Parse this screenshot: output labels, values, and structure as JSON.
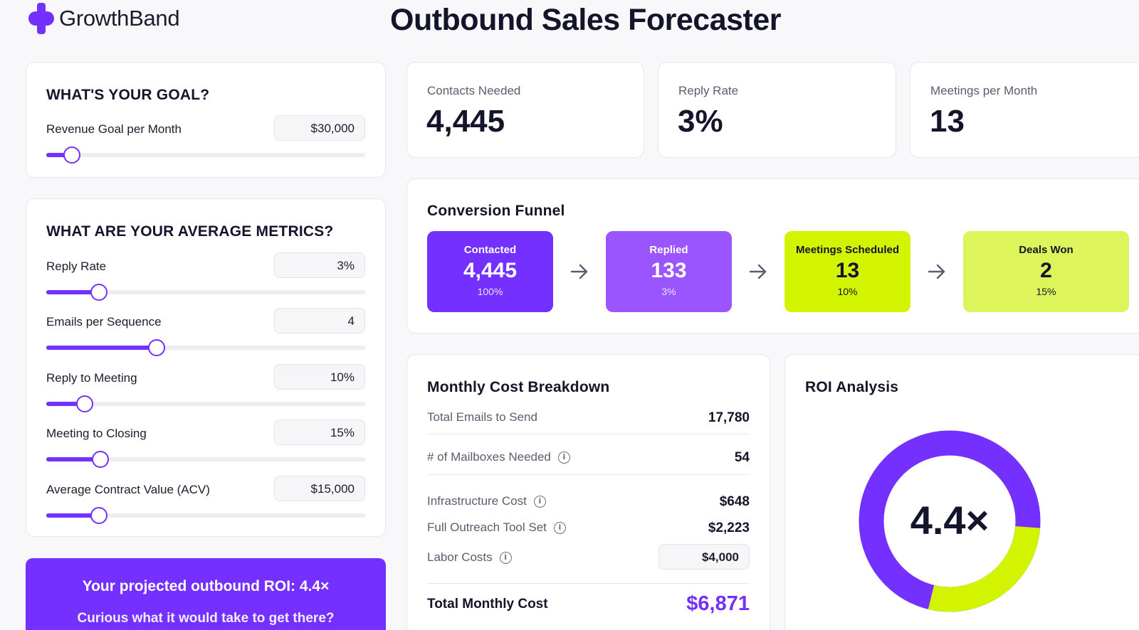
{
  "header": {
    "brand": "GrowthBand",
    "title": "Outbound Sales Forecaster"
  },
  "colors": {
    "accent": "#7330ff",
    "accent_light": "#9a55ff",
    "lime": "#d2f400",
    "lime_light": "#ddf55a"
  },
  "goal": {
    "heading": "WHAT'S YOUR GOAL?",
    "revenue": {
      "label": "Revenue Goal per Month",
      "value": "$30,000",
      "slider_fraction": 0.08
    }
  },
  "metrics": {
    "heading": "WHAT ARE YOUR AVERAGE METRICS?",
    "fields": [
      {
        "label": "Reply Rate",
        "value": "3%",
        "slider_fraction": 0.165
      },
      {
        "label": "Emails per Sequence",
        "value": "4",
        "slider_fraction": 0.345
      },
      {
        "label": "Reply to Meeting",
        "value": "10%",
        "slider_fraction": 0.12
      },
      {
        "label": "Meeting to Closing",
        "value": "15%",
        "slider_fraction": 0.17
      },
      {
        "label": "Average Contract Value (ACV)",
        "value": "$15,000",
        "slider_fraction": 0.165
      }
    ]
  },
  "banner": {
    "line1": "Your projected outbound ROI: 4.4×",
    "line2": "Curious what it would take to get there?"
  },
  "stats": [
    {
      "label": "Contacts Needed",
      "value": "4,445"
    },
    {
      "label": "Reply Rate",
      "value": "3%"
    },
    {
      "label": "Meetings per Month",
      "value": "13"
    }
  ],
  "funnel": {
    "title": "Conversion Funnel",
    "stages": [
      {
        "label": "Contacted",
        "value": "4,445",
        "pct": "100%"
      },
      {
        "label": "Replied",
        "value": "133",
        "pct": "3%"
      },
      {
        "label": "Meetings Scheduled",
        "value": "13",
        "pct": "10%"
      },
      {
        "label": "Deals Won",
        "value": "2",
        "pct": "15%"
      }
    ]
  },
  "costs": {
    "title": "Monthly Cost Breakdown",
    "rows": [
      {
        "label": "Total Emails to Send",
        "value": "17,780"
      },
      {
        "label": "# of Mailboxes Needed",
        "value": "54"
      },
      {
        "label": "Infrastructure Cost",
        "value": "$648"
      },
      {
        "label": "Full Outreach Tool Set",
        "value": "$2,223"
      },
      {
        "label": "Labor Costs",
        "value": "$4,000"
      }
    ],
    "total_label": "Total Monthly Cost",
    "total_value": "$6,871"
  },
  "roi": {
    "title": "ROI Analysis",
    "value": "4.4×",
    "purple_fraction": 0.7
  }
}
